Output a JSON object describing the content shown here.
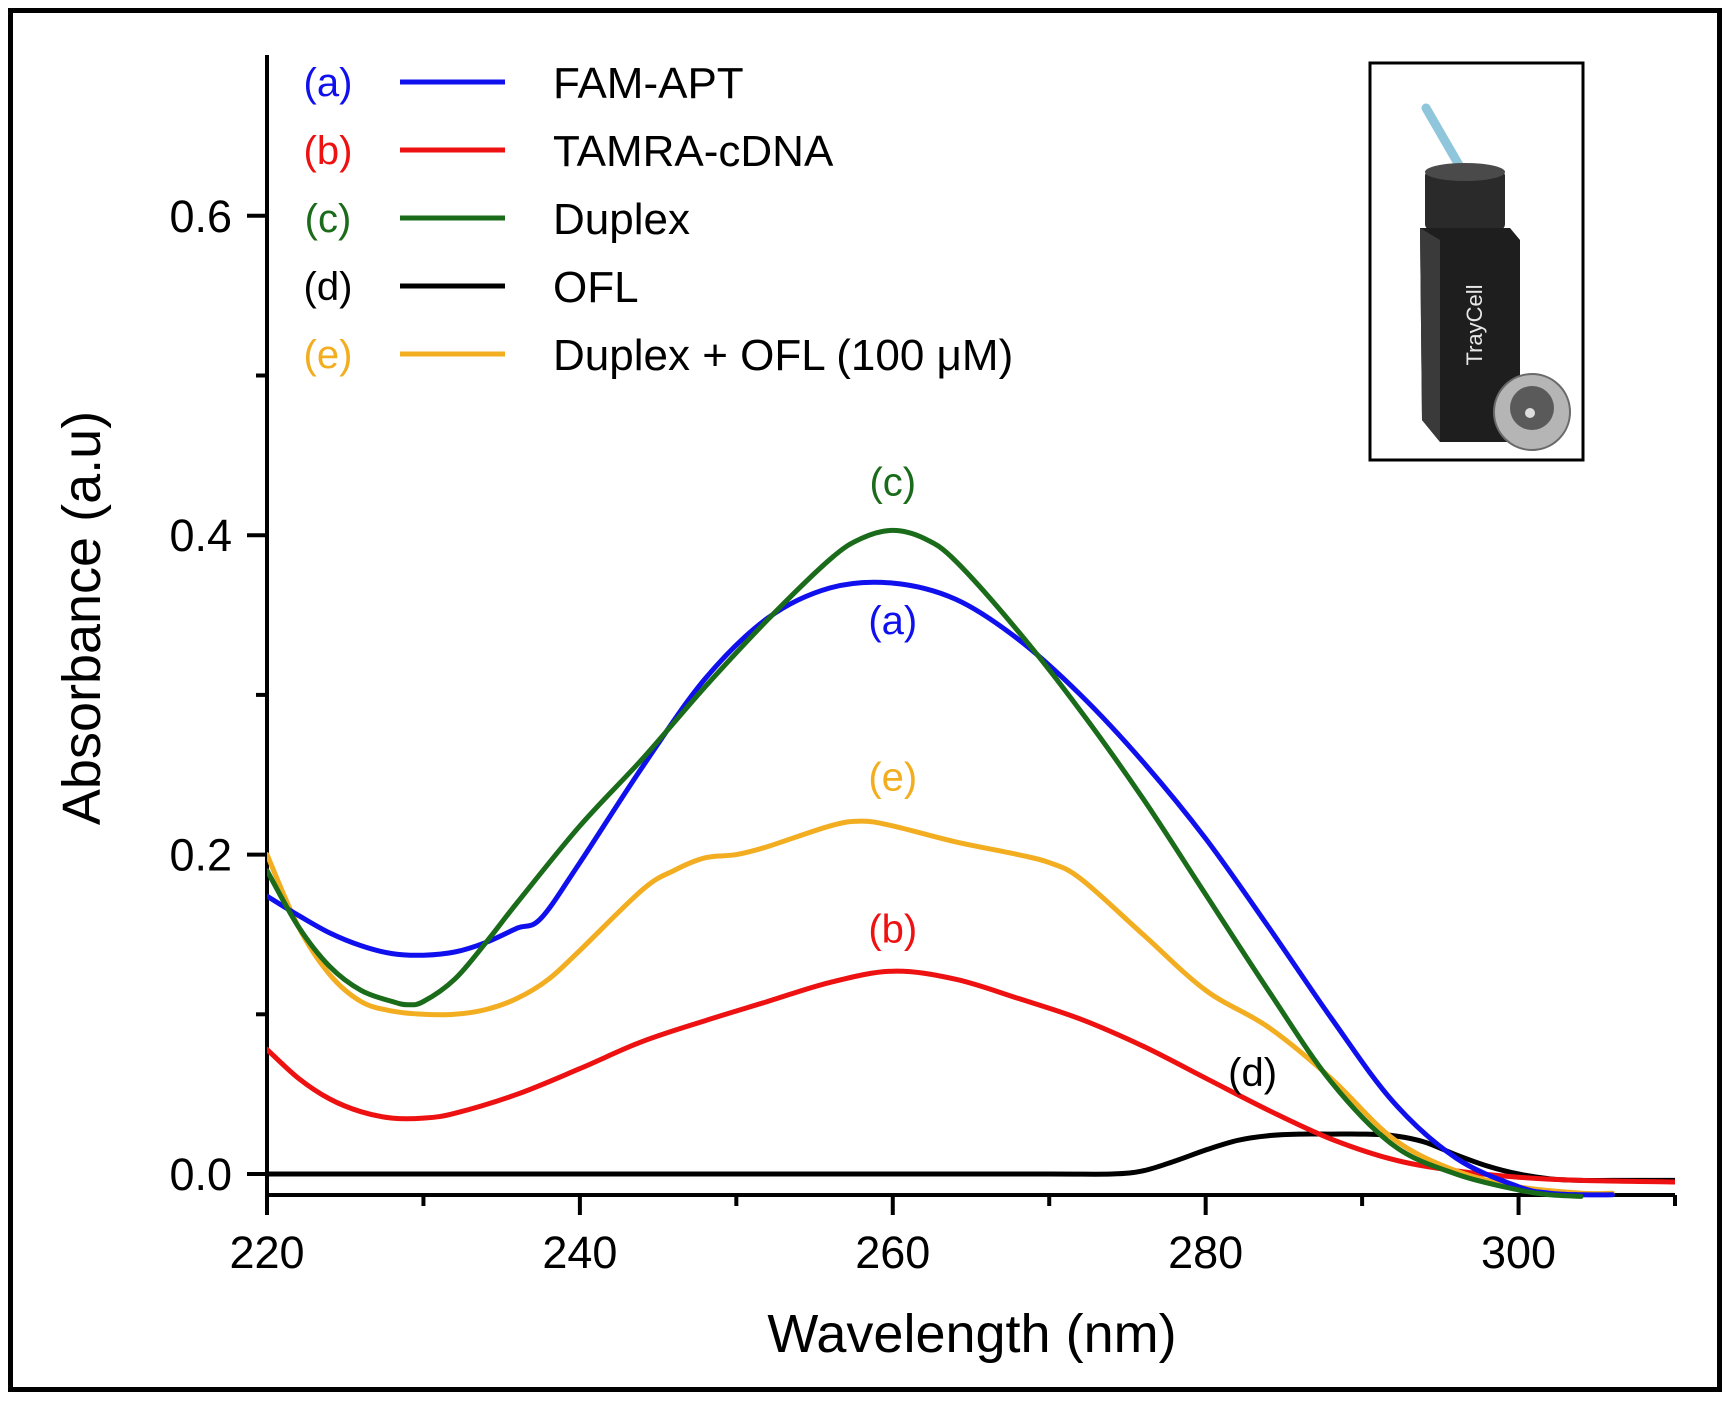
{
  "chart_data": {
    "type": "line",
    "title": "",
    "xlabel": "Wavelength (nm)",
    "ylabel": "Absorbance (a.u)",
    "xlim": [
      220,
      310
    ],
    "ylim": [
      -0.01,
      0.7
    ],
    "xticks": [
      220,
      240,
      260,
      280,
      300
    ],
    "yticks": [
      0.0,
      0.2,
      0.4,
      0.6
    ],
    "xtick_labels": [
      "220",
      "240",
      "260",
      "280",
      "300"
    ],
    "ytick_labels": [
      "0.0",
      "0.2",
      "0.4",
      "0.6"
    ],
    "legend_position": "top-left",
    "series": [
      {
        "id": "a",
        "tag": "(a)",
        "name": "FAM-APT",
        "color": "#1010ee",
        "annotation_at": [
          260,
          0.338
        ],
        "x": [
          220,
          222,
          224,
          226,
          228,
          230,
          232,
          234,
          236,
          237.5,
          240,
          244,
          248,
          252,
          256,
          260,
          264,
          268,
          272,
          276,
          280,
          284,
          288,
          292,
          296,
          300,
          302,
          304,
          306
        ],
        "y": [
          0.174,
          0.162,
          0.151,
          0.143,
          0.138,
          0.137,
          0.139,
          0.145,
          0.154,
          0.16,
          0.195,
          0.255,
          0.31,
          0.348,
          0.367,
          0.37,
          0.36,
          0.335,
          0.3,
          0.258,
          0.21,
          0.155,
          0.098,
          0.045,
          0.01,
          -0.008,
          -0.012,
          -0.013,
          -0.013
        ]
      },
      {
        "id": "b",
        "tag": "(b)",
        "name": "TAMRA-cDNA",
        "color": "#ee1111",
        "annotation_at": [
          260,
          0.145
        ],
        "x": [
          220,
          222,
          224,
          226,
          228,
          230,
          232,
          236,
          240,
          244,
          248,
          252,
          256,
          260,
          264,
          268,
          272,
          276,
          280,
          284,
          288,
          292,
          296,
          300,
          304,
          310
        ],
        "y": [
          0.078,
          0.06,
          0.047,
          0.039,
          0.035,
          0.035,
          0.038,
          0.05,
          0.066,
          0.083,
          0.096,
          0.108,
          0.12,
          0.127,
          0.122,
          0.11,
          0.097,
          0.08,
          0.06,
          0.04,
          0.022,
          0.009,
          0.002,
          -0.002,
          -0.004,
          -0.005
        ]
      },
      {
        "id": "c",
        "tag": "(c)",
        "name": "Duplex",
        "color": "#1a6b1a",
        "annotation_at": [
          260,
          0.425
        ],
        "x": [
          220,
          222,
          224,
          226,
          228,
          229,
          230,
          232,
          234,
          236,
          240,
          244,
          248,
          252,
          256,
          258,
          260,
          262,
          264,
          268,
          272,
          276,
          280,
          284,
          288,
          292,
          296,
          300,
          302,
          304
        ],
        "y": [
          0.19,
          0.155,
          0.13,
          0.115,
          0.108,
          0.106,
          0.108,
          0.122,
          0.145,
          0.17,
          0.218,
          0.26,
          0.305,
          0.347,
          0.385,
          0.398,
          0.403,
          0.398,
          0.384,
          0.34,
          0.29,
          0.235,
          0.175,
          0.115,
          0.058,
          0.018,
          0.0,
          -0.01,
          -0.013,
          -0.014
        ]
      },
      {
        "id": "d",
        "tag": "(d)",
        "name": "OFL",
        "color": "#000000",
        "annotation_at": [
          283,
          0.055
        ],
        "x": [
          220,
          230,
          240,
          250,
          260,
          270,
          274,
          276,
          278,
          280,
          282,
          284,
          286,
          288,
          290,
          292,
          294,
          296,
          298,
          300,
          302,
          304,
          306,
          310
        ],
        "y": [
          0.0,
          0.0,
          0.0,
          0.0,
          0.0,
          0.0,
          0.0,
          0.002,
          0.008,
          0.015,
          0.021,
          0.024,
          0.025,
          0.025,
          0.025,
          0.024,
          0.02,
          0.012,
          0.005,
          0.0,
          -0.003,
          -0.004,
          -0.004,
          -0.004
        ]
      },
      {
        "id": "e",
        "tag": "(e)",
        "name": "Duplex + OFL (100 μM)",
        "color": "#f2ae20",
        "annotation_at": [
          260,
          0.24
        ],
        "x": [
          220,
          222,
          224,
          226,
          228,
          230,
          232,
          234,
          236,
          238,
          240,
          244,
          246,
          248,
          250,
          252,
          256,
          258,
          260,
          264,
          268,
          270,
          272,
          276,
          280,
          284,
          288,
          292,
          296,
          300,
          304,
          306
        ],
        "y": [
          0.2,
          0.155,
          0.125,
          0.108,
          0.102,
          0.1,
          0.1,
          0.103,
          0.11,
          0.122,
          0.14,
          0.178,
          0.19,
          0.198,
          0.2,
          0.205,
          0.218,
          0.221,
          0.218,
          0.208,
          0.2,
          0.195,
          0.185,
          0.15,
          0.115,
          0.092,
          0.06,
          0.022,
          0.002,
          -0.008,
          -0.012,
          -0.012
        ]
      }
    ],
    "inset": {
      "device_label": "TrayCell"
    }
  }
}
